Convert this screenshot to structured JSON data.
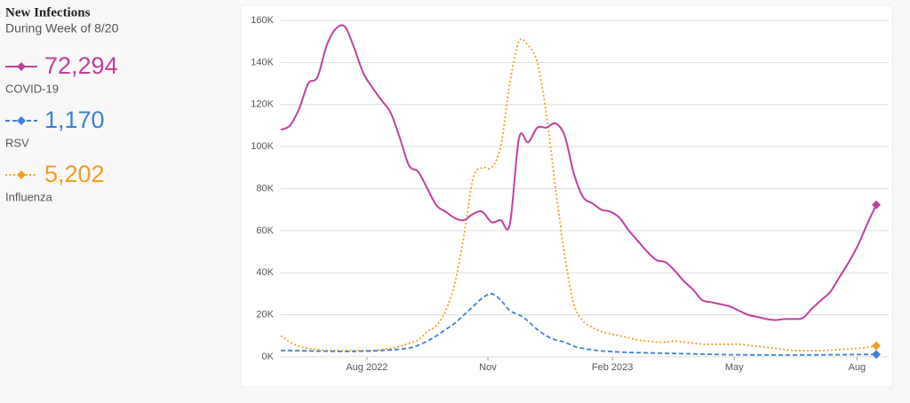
{
  "chart_data": {
    "type": "line",
    "title": "New Infections",
    "subtitle": "During Week of 8/20",
    "x": [
      0,
      1,
      2,
      3,
      4,
      5,
      6,
      7,
      8,
      9,
      10,
      11,
      12,
      13,
      14,
      15,
      16,
      17,
      18,
      19,
      20,
      21,
      22,
      23,
      24,
      25,
      26,
      27,
      28,
      29,
      30,
      31,
      32,
      33,
      34,
      35,
      36,
      37,
      38,
      39,
      40,
      41,
      42,
      43,
      44,
      45,
      46,
      47,
      48,
      49,
      50,
      51,
      52,
      53,
      54,
      55,
      56,
      57,
      58,
      59,
      60,
      61,
      62,
      63,
      64,
      65
    ],
    "xlim": [
      0,
      65
    ],
    "xticks": [
      {
        "value": 9.4,
        "label": "Aug 2022"
      },
      {
        "value": 22.6,
        "label": "Nov"
      },
      {
        "value": 36.2,
        "label": "Feb 2023"
      },
      {
        "value": 49.5,
        "label": "May"
      },
      {
        "value": 62.9,
        "label": "Aug"
      }
    ],
    "ylim": [
      0,
      160000
    ],
    "yticks": [
      {
        "value": 0,
        "label": "0K"
      },
      {
        "value": 20000,
        "label": "20K"
      },
      {
        "value": 40000,
        "label": "40K"
      },
      {
        "value": 60000,
        "label": "60K"
      },
      {
        "value": 80000,
        "label": "80K"
      },
      {
        "value": 100000,
        "label": "100K"
      },
      {
        "value": 120000,
        "label": "120K"
      },
      {
        "value": 140000,
        "label": "140K"
      },
      {
        "value": 160000,
        "label": "160K"
      }
    ],
    "grid": true,
    "series": [
      {
        "name": "COVID-19",
        "color": "#c2409e",
        "style": "solid",
        "latest_label": "72,294",
        "values": [
          108000,
          110000,
          118000,
          130000,
          133000,
          148000,
          156000,
          157000,
          147000,
          135000,
          128000,
          122000,
          116000,
          104000,
          91000,
          88000,
          80000,
          72000,
          69000,
          66000,
          65000,
          68000,
          69000,
          64000,
          65000,
          63000,
          104000,
          102000,
          109000,
          109000,
          111000,
          105000,
          87000,
          76000,
          73000,
          70000,
          69000,
          66000,
          60000,
          55000,
          50000,
          46000,
          45000,
          41000,
          36000,
          32000,
          27000,
          26000,
          25000,
          24000,
          22000,
          20000,
          19000,
          18000,
          17500,
          18000,
          18000,
          18500,
          23000,
          27000,
          31000,
          38000,
          45000,
          53000,
          63000,
          72294
        ]
      },
      {
        "name": "RSV",
        "color": "#3b82d6",
        "style": "dashed",
        "latest_label": "1,170",
        "values": [
          3000,
          3000,
          2900,
          2800,
          2700,
          2700,
          2600,
          2600,
          2600,
          2700,
          2800,
          3000,
          3300,
          3600,
          4200,
          5500,
          7500,
          10000,
          13000,
          16000,
          20000,
          24000,
          28000,
          30000,
          27000,
          22000,
          20000,
          17000,
          13000,
          10000,
          8000,
          7000,
          5000,
          4000,
          3300,
          2800,
          2500,
          2300,
          2100,
          2000,
          1900,
          1800,
          1700,
          1600,
          1500,
          1400,
          1300,
          1200,
          1100,
          1000,
          1000,
          950,
          900,
          900,
          850,
          850,
          850,
          900,
          900,
          950,
          1000,
          1000,
          1050,
          1100,
          1150,
          1170
        ]
      },
      {
        "name": "Influenza",
        "color": "#f0a020",
        "style": "dotted",
        "latest_label": "5,202",
        "values": [
          10000,
          7000,
          5000,
          4000,
          3500,
          3000,
          3000,
          3000,
          3000,
          3000,
          3000,
          3500,
          4000,
          5000,
          6500,
          8000,
          12000,
          15000,
          22000,
          35000,
          58000,
          85000,
          90000,
          90000,
          100000,
          130000,
          150000,
          148000,
          140000,
          115000,
          80000,
          48000,
          25000,
          17000,
          14000,
          12000,
          11000,
          10000,
          9000,
          8000,
          7500,
          7000,
          7000,
          7500,
          7000,
          6500,
          6000,
          6000,
          6000,
          6000,
          6000,
          5500,
          5000,
          4500,
          4000,
          3500,
          3000,
          3000,
          3000,
          3000,
          3200,
          3500,
          3700,
          4000,
          4500,
          5202
        ]
      }
    ]
  }
}
